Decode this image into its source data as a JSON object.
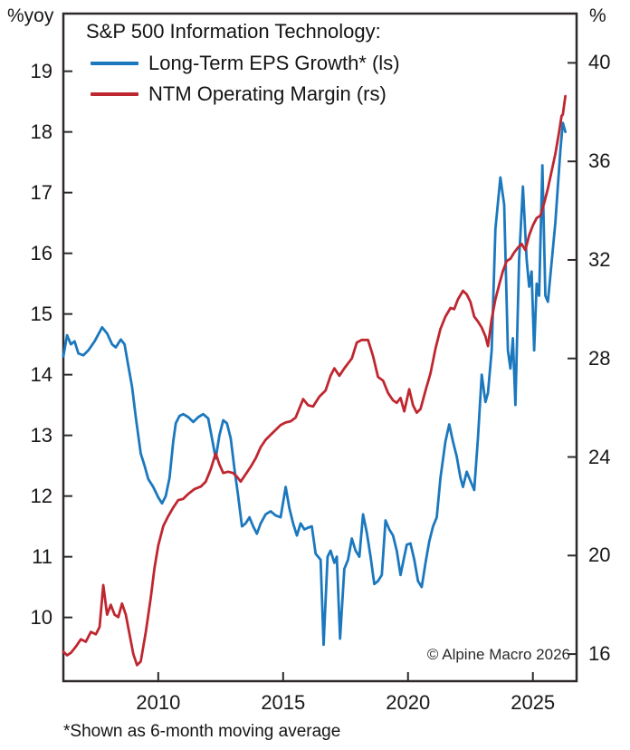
{
  "chart_data": {
    "type": "line",
    "title": "S&P 500 Information Technology:",
    "footnote": "*Shown as 6-month moving average",
    "copyright": "© Alpine Macro 2026",
    "legend_position": "top-left-inside",
    "grid": false,
    "x_axis": {
      "range": [
        2006.2,
        2026.75
      ],
      "ticks": [
        2010,
        2015,
        2020,
        2025
      ]
    },
    "left_axis": {
      "label": "%yoy",
      "range": [
        8.95,
        19.95
      ],
      "ticks": [
        10,
        11,
        12,
        13,
        14,
        15,
        16,
        17,
        18,
        19
      ]
    },
    "right_axis": {
      "label": "%",
      "range": [
        14.9,
        42.0
      ],
      "ticks": [
        16,
        20,
        24,
        28,
        32,
        36,
        40
      ]
    },
    "series": [
      {
        "name": "Long-Term EPS Growth* (ls)",
        "axis": "left",
        "color": "#1b78be",
        "points": [
          [
            2006.2,
            14.3
          ],
          [
            2006.35,
            14.65
          ],
          [
            2006.5,
            14.5
          ],
          [
            2006.65,
            14.55
          ],
          [
            2006.8,
            14.35
          ],
          [
            2007.0,
            14.32
          ],
          [
            2007.2,
            14.4
          ],
          [
            2007.45,
            14.55
          ],
          [
            2007.75,
            14.78
          ],
          [
            2007.95,
            14.68
          ],
          [
            2008.15,
            14.5
          ],
          [
            2008.3,
            14.45
          ],
          [
            2008.5,
            14.58
          ],
          [
            2008.65,
            14.5
          ],
          [
            2008.8,
            14.15
          ],
          [
            2008.95,
            13.8
          ],
          [
            2009.1,
            13.3
          ],
          [
            2009.3,
            12.7
          ],
          [
            2009.45,
            12.5
          ],
          [
            2009.6,
            12.28
          ],
          [
            2009.8,
            12.15
          ],
          [
            2010.0,
            11.98
          ],
          [
            2010.15,
            11.88
          ],
          [
            2010.3,
            12.0
          ],
          [
            2010.45,
            12.3
          ],
          [
            2010.6,
            12.9
          ],
          [
            2010.7,
            13.2
          ],
          [
            2010.85,
            13.32
          ],
          [
            2011.0,
            13.35
          ],
          [
            2011.2,
            13.3
          ],
          [
            2011.4,
            13.22
          ],
          [
            2011.6,
            13.3
          ],
          [
            2011.8,
            13.35
          ],
          [
            2012.0,
            13.28
          ],
          [
            2012.15,
            12.95
          ],
          [
            2012.3,
            12.62
          ],
          [
            2012.45,
            13.0
          ],
          [
            2012.6,
            13.25
          ],
          [
            2012.75,
            13.2
          ],
          [
            2012.9,
            12.95
          ],
          [
            2013.05,
            12.45
          ],
          [
            2013.2,
            12.0
          ],
          [
            2013.35,
            11.5
          ],
          [
            2013.5,
            11.55
          ],
          [
            2013.65,
            11.65
          ],
          [
            2013.8,
            11.5
          ],
          [
            2013.95,
            11.38
          ],
          [
            2014.1,
            11.55
          ],
          [
            2014.3,
            11.7
          ],
          [
            2014.5,
            11.75
          ],
          [
            2014.7,
            11.68
          ],
          [
            2014.9,
            11.65
          ],
          [
            2015.1,
            12.15
          ],
          [
            2015.25,
            11.8
          ],
          [
            2015.4,
            11.55
          ],
          [
            2015.55,
            11.35
          ],
          [
            2015.7,
            11.55
          ],
          [
            2015.85,
            11.45
          ],
          [
            2016.0,
            11.48
          ],
          [
            2016.15,
            11.5
          ],
          [
            2016.3,
            11.05
          ],
          [
            2016.5,
            10.95
          ],
          [
            2016.62,
            9.55
          ],
          [
            2016.78,
            11.0
          ],
          [
            2016.9,
            11.1
          ],
          [
            2017.05,
            10.9
          ],
          [
            2017.15,
            11.0
          ],
          [
            2017.28,
            9.65
          ],
          [
            2017.45,
            10.8
          ],
          [
            2017.6,
            10.95
          ],
          [
            2017.75,
            11.3
          ],
          [
            2017.9,
            11.1
          ],
          [
            2018.05,
            11.0
          ],
          [
            2018.2,
            11.7
          ],
          [
            2018.35,
            11.4
          ],
          [
            2018.5,
            11.0
          ],
          [
            2018.65,
            10.55
          ],
          [
            2018.8,
            10.6
          ],
          [
            2018.95,
            10.7
          ],
          [
            2019.1,
            11.6
          ],
          [
            2019.25,
            11.45
          ],
          [
            2019.4,
            11.35
          ],
          [
            2019.55,
            11.1
          ],
          [
            2019.7,
            10.7
          ],
          [
            2019.85,
            11.0
          ],
          [
            2019.95,
            11.2
          ],
          [
            2020.1,
            11.22
          ],
          [
            2020.25,
            10.95
          ],
          [
            2020.4,
            10.6
          ],
          [
            2020.55,
            10.5
          ],
          [
            2020.7,
            10.9
          ],
          [
            2020.85,
            11.25
          ],
          [
            2021.0,
            11.5
          ],
          [
            2021.15,
            11.65
          ],
          [
            2021.3,
            12.3
          ],
          [
            2021.5,
            12.9
          ],
          [
            2021.65,
            13.18
          ],
          [
            2021.8,
            12.9
          ],
          [
            2021.95,
            12.65
          ],
          [
            2022.1,
            12.3
          ],
          [
            2022.2,
            12.15
          ],
          [
            2022.35,
            12.4
          ],
          [
            2022.5,
            12.25
          ],
          [
            2022.65,
            12.1
          ],
          [
            2022.8,
            12.95
          ],
          [
            2022.95,
            14.0
          ],
          [
            2023.1,
            13.55
          ],
          [
            2023.2,
            13.7
          ],
          [
            2023.35,
            14.4
          ],
          [
            2023.5,
            16.4
          ],
          [
            2023.7,
            17.25
          ],
          [
            2023.85,
            16.8
          ],
          [
            2024.0,
            14.4
          ],
          [
            2024.1,
            14.1
          ],
          [
            2024.2,
            14.6
          ],
          [
            2024.3,
            13.5
          ],
          [
            2024.45,
            15.9
          ],
          [
            2024.6,
            17.1
          ],
          [
            2024.75,
            15.9
          ],
          [
            2024.85,
            15.45
          ],
          [
            2024.95,
            15.7
          ],
          [
            2025.05,
            14.4
          ],
          [
            2025.15,
            15.5
          ],
          [
            2025.25,
            15.3
          ],
          [
            2025.38,
            17.45
          ],
          [
            2025.5,
            15.3
          ],
          [
            2025.6,
            15.2
          ],
          [
            2025.75,
            15.85
          ],
          [
            2025.9,
            16.5
          ],
          [
            2026.0,
            17.1
          ],
          [
            2026.1,
            17.7
          ],
          [
            2026.2,
            18.15
          ],
          [
            2026.3,
            18.0
          ]
        ]
      },
      {
        "name": "NTM Operating Margin (rs)",
        "axis": "right",
        "color": "#bf2730",
        "points": [
          [
            2006.2,
            16.1
          ],
          [
            2006.35,
            15.95
          ],
          [
            2006.5,
            16.05
          ],
          [
            2006.7,
            16.3
          ],
          [
            2006.9,
            16.6
          ],
          [
            2007.1,
            16.5
          ],
          [
            2007.3,
            16.9
          ],
          [
            2007.5,
            16.8
          ],
          [
            2007.65,
            17.1
          ],
          [
            2007.8,
            18.8
          ],
          [
            2007.95,
            17.6
          ],
          [
            2008.1,
            18.0
          ],
          [
            2008.25,
            17.6
          ],
          [
            2008.4,
            17.5
          ],
          [
            2008.55,
            18.05
          ],
          [
            2008.7,
            17.6
          ],
          [
            2008.85,
            16.8
          ],
          [
            2009.0,
            16.0
          ],
          [
            2009.15,
            15.55
          ],
          [
            2009.3,
            15.7
          ],
          [
            2009.5,
            16.9
          ],
          [
            2009.7,
            18.3
          ],
          [
            2009.85,
            19.5
          ],
          [
            2010.0,
            20.4
          ],
          [
            2010.2,
            21.2
          ],
          [
            2010.4,
            21.6
          ],
          [
            2010.6,
            21.95
          ],
          [
            2010.8,
            22.25
          ],
          [
            2011.0,
            22.3
          ],
          [
            2011.2,
            22.5
          ],
          [
            2011.45,
            22.7
          ],
          [
            2011.7,
            22.8
          ],
          [
            2011.9,
            23.0
          ],
          [
            2012.1,
            23.5
          ],
          [
            2012.3,
            24.15
          ],
          [
            2012.45,
            23.7
          ],
          [
            2012.6,
            23.35
          ],
          [
            2012.8,
            23.4
          ],
          [
            2013.0,
            23.35
          ],
          [
            2013.15,
            23.2
          ],
          [
            2013.3,
            23.0
          ],
          [
            2013.5,
            23.3
          ],
          [
            2013.7,
            23.6
          ],
          [
            2013.9,
            23.95
          ],
          [
            2014.1,
            24.4
          ],
          [
            2014.3,
            24.7
          ],
          [
            2014.5,
            24.9
          ],
          [
            2014.7,
            25.1
          ],
          [
            2014.9,
            25.3
          ],
          [
            2015.1,
            25.4
          ],
          [
            2015.3,
            25.45
          ],
          [
            2015.5,
            25.6
          ],
          [
            2015.8,
            26.35
          ],
          [
            2016.0,
            26.1
          ],
          [
            2016.2,
            26.05
          ],
          [
            2016.45,
            26.45
          ],
          [
            2016.7,
            26.7
          ],
          [
            2016.9,
            27.3
          ],
          [
            2017.05,
            27.6
          ],
          [
            2017.25,
            27.3
          ],
          [
            2017.45,
            27.6
          ],
          [
            2017.6,
            27.8
          ],
          [
            2017.75,
            28.0
          ],
          [
            2017.95,
            28.65
          ],
          [
            2018.15,
            28.75
          ],
          [
            2018.4,
            28.75
          ],
          [
            2018.6,
            28.1
          ],
          [
            2018.8,
            27.25
          ],
          [
            2019.0,
            27.1
          ],
          [
            2019.2,
            26.6
          ],
          [
            2019.4,
            26.3
          ],
          [
            2019.55,
            26.2
          ],
          [
            2019.7,
            26.4
          ],
          [
            2019.85,
            25.85
          ],
          [
            2020.05,
            26.75
          ],
          [
            2020.2,
            26.1
          ],
          [
            2020.35,
            25.8
          ],
          [
            2020.5,
            25.95
          ],
          [
            2020.7,
            26.7
          ],
          [
            2020.9,
            27.4
          ],
          [
            2021.1,
            28.4
          ],
          [
            2021.3,
            29.2
          ],
          [
            2021.5,
            29.7
          ],
          [
            2021.7,
            30.05
          ],
          [
            2021.85,
            30.0
          ],
          [
            2022.0,
            30.4
          ],
          [
            2022.2,
            30.75
          ],
          [
            2022.35,
            30.6
          ],
          [
            2022.5,
            30.3
          ],
          [
            2022.65,
            29.7
          ],
          [
            2022.8,
            29.5
          ],
          [
            2022.95,
            29.25
          ],
          [
            2023.1,
            28.9
          ],
          [
            2023.2,
            28.5
          ],
          [
            2023.35,
            29.6
          ],
          [
            2023.5,
            30.4
          ],
          [
            2023.65,
            31.0
          ],
          [
            2023.8,
            31.55
          ],
          [
            2023.95,
            31.95
          ],
          [
            2024.1,
            32.05
          ],
          [
            2024.25,
            32.3
          ],
          [
            2024.4,
            32.5
          ],
          [
            2024.55,
            32.65
          ],
          [
            2024.7,
            32.4
          ],
          [
            2024.85,
            33.0
          ],
          [
            2025.0,
            33.4
          ],
          [
            2025.15,
            33.7
          ],
          [
            2025.3,
            33.8
          ],
          [
            2025.45,
            34.3
          ],
          [
            2025.6,
            34.9
          ],
          [
            2025.75,
            35.6
          ],
          [
            2025.9,
            36.3
          ],
          [
            2026.05,
            37.2
          ],
          [
            2026.15,
            37.85
          ],
          [
            2026.2,
            37.9
          ],
          [
            2026.3,
            38.65
          ]
        ]
      }
    ]
  }
}
